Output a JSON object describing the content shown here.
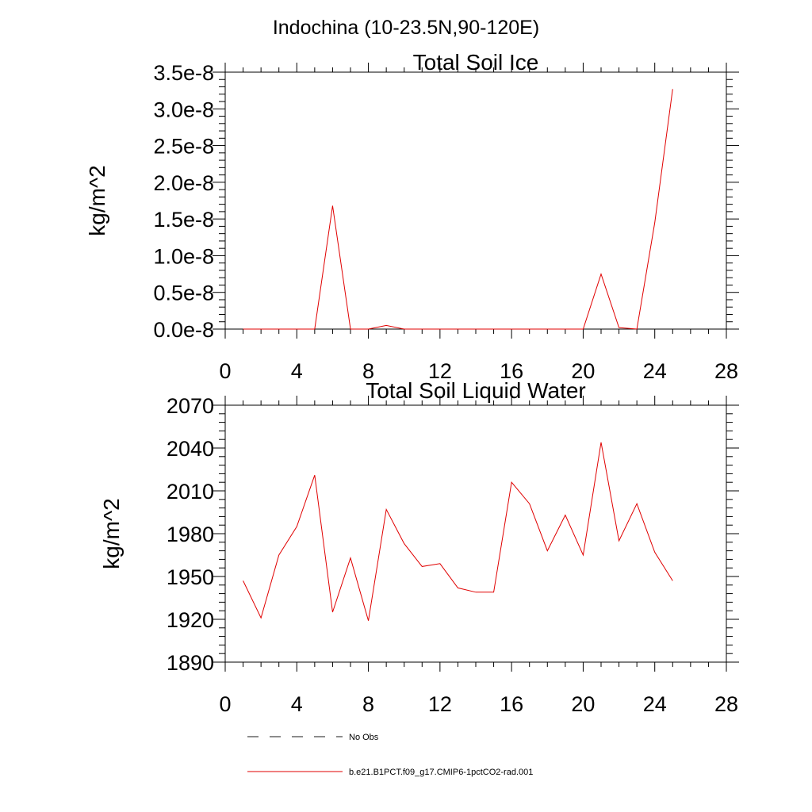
{
  "main_title": "Indochina (10-23.5N,90-120E)",
  "legend": {
    "items": [
      {
        "label": "No Obs",
        "color": "#1a1a1a",
        "dash": true
      },
      {
        "label": "b.e21.B1PCT.f09_g17.CMIP6-1pctCO2-rad.001",
        "color": "#e00000",
        "dash": false
      }
    ]
  },
  "chart_data": [
    {
      "type": "line",
      "title": "Total Soil Ice",
      "ylabel": "kg/m^2",
      "xlim": [
        0,
        28
      ],
      "ylim": [
        0,
        3.5e-08
      ],
      "x_ticks": [
        0,
        4,
        8,
        12,
        16,
        20,
        24,
        28
      ],
      "x_tick_labels": [
        "0",
        "4",
        "8",
        "12",
        "16",
        "20",
        "24",
        "28"
      ],
      "y_ticks": [
        0,
        5e-09,
        1e-08,
        1.5e-08,
        2e-08,
        2.5e-08,
        3e-08,
        3.5e-08
      ],
      "y_tick_labels": [
        "0.0e-8",
        "0.5e-8",
        "1.0e-8",
        "1.5e-8",
        "2.0e-8",
        "2.5e-8",
        "3.0e-8",
        "3.5e-8"
      ],
      "series": [
        {
          "color": "#e00000",
          "x": [
            1,
            2,
            3,
            4,
            5,
            6,
            7,
            8,
            9,
            10,
            11,
            12,
            13,
            14,
            15,
            16,
            17,
            18,
            19,
            20,
            21,
            22,
            23,
            24,
            25
          ],
          "y": [
            0,
            0,
            0,
            0,
            0,
            1.68e-08,
            0,
            0,
            5e-10,
            0,
            0,
            0,
            0,
            0,
            0,
            0,
            0,
            0,
            0,
            0,
            7.5e-09,
            2e-10,
            0,
            1.45e-08,
            3.27e-08
          ]
        }
      ]
    },
    {
      "type": "line",
      "title": "Total Soil Liquid Water",
      "ylabel": "kg/m^2",
      "xlim": [
        0,
        28
      ],
      "ylim": [
        1890,
        2070
      ],
      "x_ticks": [
        0,
        4,
        8,
        12,
        16,
        20,
        24,
        28
      ],
      "x_tick_labels": [
        "0",
        "4",
        "8",
        "12",
        "16",
        "20",
        "24",
        "28"
      ],
      "y_ticks": [
        1890,
        1920,
        1950,
        1980,
        2010,
        2040,
        2070
      ],
      "y_tick_labels": [
        "1890",
        "1920",
        "1950",
        "1980",
        "2010",
        "2040",
        "2070"
      ],
      "series": [
        {
          "color": "#e00000",
          "x": [
            1,
            2,
            3,
            4,
            5,
            6,
            7,
            8,
            9,
            10,
            11,
            12,
            13,
            14,
            15,
            16,
            17,
            18,
            19,
            20,
            21,
            22,
            23,
            24,
            25
          ],
          "y": [
            1947,
            1921,
            1965,
            1985,
            2021,
            1925,
            1963,
            1919,
            1997,
            1973,
            1957,
            1959,
            1942,
            1939,
            1939,
            2016,
            2001,
            1968,
            1993,
            1965,
            2044,
            1975,
            2001,
            1967,
            1947
          ]
        }
      ]
    }
  ]
}
